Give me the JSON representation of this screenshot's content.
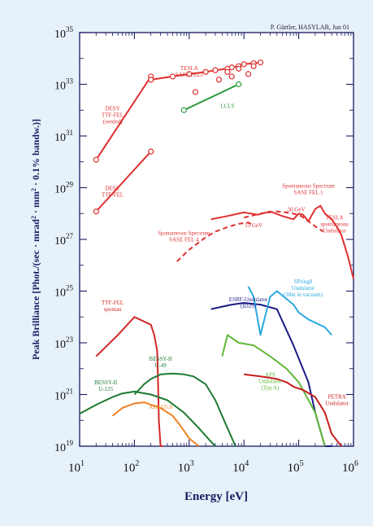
{
  "chart_data": {
    "type": "line",
    "credit": "P. Gürtler, HASYLAB, Jun 01",
    "xlabel": "Energy [eV]",
    "ylabel": "Peak Brilliance [Phot./(sec · mrad² · mm² · 0.1% bandw.)]",
    "x_scale": "log",
    "y_scale": "log",
    "xlim": [
      10,
      1000000
    ],
    "ylim": [
      1e+19,
      1e+35
    ],
    "x_ticks": [
      {
        "value": 10,
        "base": "10",
        "exp": "1"
      },
      {
        "value": 100,
        "base": "10",
        "exp": "2"
      },
      {
        "value": 1000,
        "base": "10",
        "exp": "3"
      },
      {
        "value": 10000,
        "base": "10",
        "exp": "4"
      },
      {
        "value": 100000,
        "base": "10",
        "exp": "5"
      },
      {
        "value": 1000000,
        "base": "10",
        "exp": "6"
      }
    ],
    "y_ticks": [
      {
        "value": 1e+19,
        "base": "10",
        "exp": "19"
      },
      {
        "value": 1e+21,
        "base": "10",
        "exp": "21"
      },
      {
        "value": 1e+23,
        "base": "10",
        "exp": "23"
      },
      {
        "value": 1e+25,
        "base": "10",
        "exp": "25"
      },
      {
        "value": 1e+27,
        "base": "10",
        "exp": "27"
      },
      {
        "value": 1e+29,
        "base": "10",
        "exp": "29"
      },
      {
        "value": 1e+31,
        "base": "10",
        "exp": "31"
      },
      {
        "value": 1e+33,
        "base": "10",
        "exp": "33"
      },
      {
        "value": 1e+35,
        "base": "10",
        "exp": "35"
      }
    ],
    "series": [
      {
        "id": "desy-ttf-seeded",
        "color": "#e03030",
        "dash": false,
        "markers": true,
        "x": [
          20,
          200
        ],
        "y": [
          1.2e+30,
          2e+33
        ]
      },
      {
        "id": "desy-ttf",
        "color": "#e03030",
        "dash": false,
        "markers": true,
        "x": [
          20,
          200
        ],
        "y": [
          1.2e+28,
          2.5e+30
        ]
      },
      {
        "id": "tesla-sase",
        "color": "#e03030",
        "dash": false,
        "markers": true,
        "x": [
          200,
          500,
          1000,
          2000,
          3000,
          5000,
          6000,
          8000,
          10000,
          15000,
          20000
        ],
        "y": [
          1.5e+33,
          2e+33,
          2.5e+33,
          3e+33,
          3.5e+33,
          4e+33,
          4.5e+33,
          5e+33,
          6e+33,
          6.5e+33,
          7e+33
        ]
      },
      {
        "id": "tesla-sase-markers",
        "color": "#e03030",
        "dash": false,
        "markers": true,
        "line": false,
        "x": [
          1300,
          3500,
          5000,
          6000,
          8000,
          12000,
          15000
        ],
        "y": [
          5e+32,
          1.5e+33,
          3e+33,
          2e+33,
          4e+33,
          2.5e+33,
          5e+33
        ]
      },
      {
        "id": "lcls",
        "color": "#2e9c3c",
        "dash": false,
        "markers": true,
        "x": [
          800,
          8000
        ],
        "y": [
          1e+32,
          1e+33
        ]
      },
      {
        "id": "spont-sase-fel1",
        "color": "#e03030",
        "dash": true,
        "markers": false,
        "x": [
          10000,
          20000,
          40000,
          60000,
          80000,
          110000,
          150000,
          200000,
          280000
        ],
        "y": [
          7e+27,
          1e+28,
          1.2e+28,
          1.1e+28,
          1e+28,
          8e+27,
          5e+27,
          3.2e+27,
          2e+27
        ]
      },
      {
        "id": "spont-sase-fel4",
        "color": "#e03030",
        "dash": true,
        "markers": false,
        "x": [
          600,
          1000,
          2000,
          3000,
          5000,
          8000,
          12000,
          15000
        ],
        "y": [
          1.4e+26,
          4e+26,
          1.2e+27,
          2e+27,
          3e+27,
          4e+27,
          4.5e+27,
          3.5e+27
        ]
      },
      {
        "id": "tesla-spont-undulator",
        "color": "#e03030",
        "dash": false,
        "markers": false,
        "x": [
          2500,
          5000,
          10000,
          18000,
          30000,
          50000,
          80000,
          100000,
          120000,
          150000,
          200000,
          250000,
          300000,
          400000,
          500000,
          600000,
          800000,
          1000000
        ],
        "y": [
          6e+27,
          8e+27,
          1.1e+28,
          9e+27,
          1.2e+28,
          8e+27,
          6e+27,
          1e+28,
          9e+27,
          5e+27,
          1.5e+28,
          2e+28,
          1e+28,
          6e+27,
          3e+27,
          1.5e+27,
          2e+26,
          3e+25
        ]
      },
      {
        "id": "ttf-fel-spont",
        "color": "#d22828",
        "dash": false,
        "markers": false,
        "x": [
          20,
          50,
          100,
          200,
          230,
          260,
          270,
          280,
          300,
          330
        ],
        "y": [
          3e+22,
          2e+23,
          1e+24,
          5e+23,
          2e+23,
          5e+22,
          3e+21,
          1e+20,
          1e+19,
          1e+19
        ]
      },
      {
        "id": "bessy2-u49",
        "color": "#1e7a32",
        "dash": false,
        "markers": false,
        "x": [
          100,
          150,
          200,
          300,
          500,
          800,
          1200,
          2000,
          3000,
          5000,
          7000
        ],
        "y": [
          1e+21,
          2.5e+21,
          4e+21,
          6e+21,
          6.5e+21,
          6e+21,
          5e+21,
          2.5e+21,
          6e+20,
          5e+19,
          1e+19
        ]
      },
      {
        "id": "bessy2-u125",
        "color": "#1e7a32",
        "dash": false,
        "markers": false,
        "x": [
          10,
          20,
          40,
          60,
          100,
          200,
          400,
          800,
          1500,
          2500,
          3000
        ],
        "y": [
          1.8e+20,
          4e+20,
          8e+20,
          1.1e+21,
          1.3e+21,
          1e+21,
          6e+20,
          2e+20,
          5e+19,
          1.5e+19,
          1e+19
        ]
      },
      {
        "id": "als-u5",
        "color": "#f08020",
        "dash": false,
        "markers": false,
        "x": [
          40,
          60,
          100,
          150,
          200,
          300,
          500,
          700,
          1000,
          1500
        ],
        "y": [
          1.5e+20,
          3e+20,
          4.5e+20,
          5e+20,
          4e+20,
          3e+20,
          1.5e+20,
          6e+19,
          2e+19,
          1e+19
        ]
      },
      {
        "id": "esrf-undulator-id29",
        "color": "#1a1a88",
        "dash": false,
        "markers": false,
        "x": [
          2500,
          4000,
          6000,
          10000,
          20000,
          40000,
          80000,
          150000,
          200000,
          300000,
          400000
        ],
        "y": [
          2e+24,
          2.5e+24,
          3e+24,
          3.5e+24,
          3e+24,
          2e+24,
          8e+22,
          3e+21,
          2e+20,
          1e+19,
          1e+19
        ]
      },
      {
        "id": "spring8-undulator",
        "color": "#2aa8e0",
        "dash": false,
        "markers": false,
        "x": [
          12000,
          15000,
          20000,
          30000,
          40000,
          60000,
          80000,
          100000,
          150000,
          200000,
          300000,
          400000
        ],
        "y": [
          1.5e+25,
          6e+24,
          2e+23,
          6e+24,
          1e+25,
          5e+24,
          3e+24,
          1.5e+24,
          8e+23,
          6e+23,
          4e+23,
          2e+23
        ]
      },
      {
        "id": "aps-undulator",
        "color": "#60b838",
        "dash": false,
        "markers": false,
        "x": [
          4000,
          5000,
          8000,
          15000,
          30000,
          60000,
          100000,
          200000,
          300000
        ],
        "y": [
          3e+22,
          2e+23,
          1e+23,
          8e+22,
          3e+22,
          1e+22,
          3e+21,
          2e+20,
          1e+19
        ]
      },
      {
        "id": "petra-undulator",
        "color": "#c81e1e",
        "dash": false,
        "markers": false,
        "x": [
          10000,
          20000,
          40000,
          60000,
          80000,
          120000,
          200000,
          300000,
          400000,
          600000
        ],
        "y": [
          6e+21,
          5e+21,
          4e+21,
          3e+21,
          2e+21,
          1.5e+21,
          8e+20,
          2e+20,
          3e+19,
          1e+19
        ]
      }
    ],
    "labels": [
      {
        "id": "label-desy-ttf-seeded",
        "lines": [
          "DESY",
          "TTF-FEL",
          "(seeded)"
        ],
        "color": "#e03030",
        "x": 40,
        "y": 1e+32
      },
      {
        "id": "label-desy-ttf",
        "lines": [
          "DESY",
          "TTF-FEL"
        ],
        "color": "#e03030",
        "x": 40,
        "y": 8e+28
      },
      {
        "id": "label-tesla-sase",
        "lines": [
          "TESLA",
          "SASE FELs"
        ],
        "color": "#e03030",
        "x": 1000,
        "y": 3.5e+33
      },
      {
        "id": "label-lcls",
        "lines": [
          "LCLS"
        ],
        "color": "#2e9c3c",
        "x": 5000,
        "y": 1.2e+32
      },
      {
        "id": "label-spont-fel1",
        "lines": [
          "Spontaneous Spectrum",
          "SASE FEL 1"
        ],
        "color": "#e03030",
        "x": 150000,
        "y": 1e+29
      },
      {
        "id": "label-30gev",
        "lines": [
          "30 GeV"
        ],
        "color": "#e03030",
        "x": 90000,
        "y": 1.2e+28
      },
      {
        "id": "label-15gev",
        "lines": [
          "15 GeV"
        ],
        "color": "#e03030",
        "x": 15000,
        "y": 3e+27
      },
      {
        "id": "label-spont-fel4",
        "lines": [
          "Spontaneous Spectrum",
          "SASE FEL 4"
        ],
        "color": "#e03030",
        "x": 800,
        "y": 1.5e+27
      },
      {
        "id": "label-tesla-spont",
        "lines": [
          "TESLA",
          "spontaneous",
          "Undulator"
        ],
        "color": "#e03030",
        "x": 450000,
        "y": 6e+27
      },
      {
        "id": "label-spring8",
        "lines": [
          "SPring8",
          "Undulator",
          "(30m in vacuum)"
        ],
        "color": "#2aa8e0",
        "x": 120000,
        "y": 2e+25
      },
      {
        "id": "label-ttf-spont",
        "lines": [
          "TTF-FEL",
          "spontan"
        ],
        "color": "#d22828",
        "x": 40,
        "y": 3e+24
      },
      {
        "id": "label-esrf",
        "lines": [
          "ESRF-Undulator",
          "(ID29)"
        ],
        "color": "#1a1a88",
        "x": 12000,
        "y": 4e+24
      },
      {
        "id": "label-bessy-u49",
        "lines": [
          "BESSY-II",
          "U-49"
        ],
        "color": "#1e7a32",
        "x": 300,
        "y": 2e+22
      },
      {
        "id": "label-aps",
        "lines": [
          "APS",
          "Undulator",
          "(Typ A)"
        ],
        "color": "#60b838",
        "x": 30000,
        "y": 5e+21
      },
      {
        "id": "label-bessy-u125",
        "lines": [
          "BESSY-II",
          "U-125"
        ],
        "color": "#1e7a32",
        "x": 30,
        "y": 2.5e+21
      },
      {
        "id": "label-als",
        "lines": [
          "ALS U5.0"
        ],
        "color": "#f08020",
        "x": 300,
        "y": 2.8e+20
      },
      {
        "id": "label-petra",
        "lines": [
          "PETRA",
          "Undulator"
        ],
        "color": "#c81e1e",
        "x": 500000,
        "y": 7e+20
      }
    ]
  }
}
